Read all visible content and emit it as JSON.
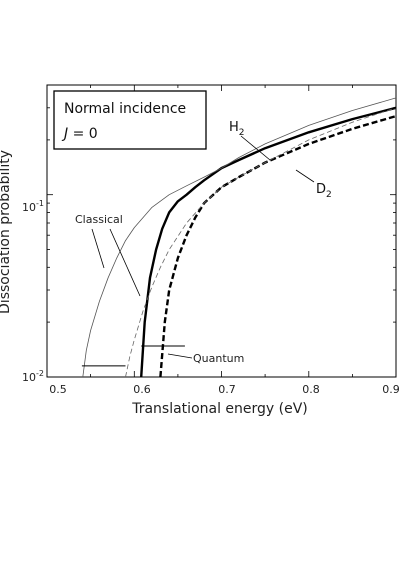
{
  "chart_data": {
    "type": "line",
    "title": "",
    "xlabel": "Translational energy (eV)",
    "ylabel": "Dissociation probability",
    "xlim": [
      0.5,
      0.9
    ],
    "ylim": [
      0.01,
      0.4
    ],
    "yscale": "log",
    "xticks": [
      "0.5",
      "0.6",
      "0.7",
      "0.8",
      "0.9"
    ],
    "yticks": [
      {
        "value": 0.01,
        "base": "10",
        "exp": "-2"
      },
      {
        "value": 0.1,
        "base": "10",
        "exp": "-1"
      }
    ],
    "grid": false,
    "legend": {
      "line1": "Normal incidence",
      "line2_var": "J",
      "line2_rest": " = 0"
    },
    "series": [
      {
        "name": "H2",
        "label_main": "H",
        "label_sub": "2",
        "method": "Quantum",
        "style": "solid-thick",
        "color": "#000000",
        "x": [
          0.608,
          0.612,
          0.618,
          0.625,
          0.632,
          0.64,
          0.65,
          0.66,
          0.67,
          0.68,
          0.7,
          0.72,
          0.75,
          0.8,
          0.85,
          0.9
        ],
        "y": [
          0.01,
          0.02,
          0.035,
          0.05,
          0.065,
          0.08,
          0.092,
          0.1,
          0.11,
          0.12,
          0.14,
          0.155,
          0.18,
          0.22,
          0.26,
          0.3
        ]
      },
      {
        "name": "D2",
        "label_main": "D",
        "label_sub": "2",
        "method": "Quantum",
        "style": "dashed-thick",
        "color": "#000000",
        "x": [
          0.63,
          0.635,
          0.64,
          0.65,
          0.66,
          0.67,
          0.68,
          0.7,
          0.72,
          0.75,
          0.8,
          0.85,
          0.9
        ],
        "y": [
          0.01,
          0.02,
          0.03,
          0.045,
          0.06,
          0.075,
          0.09,
          0.11,
          0.125,
          0.15,
          0.19,
          0.23,
          0.27
        ]
      },
      {
        "name": "H2 classical",
        "method": "Classical",
        "style": "solid-thin",
        "color": "#555555",
        "x": [
          0.541,
          0.545,
          0.55,
          0.56,
          0.57,
          0.58,
          0.59,
          0.6,
          0.62,
          0.64,
          0.66,
          0.68,
          0.7,
          0.72,
          0.75,
          0.8,
          0.85,
          0.9
        ],
        "y": [
          0.01,
          0.014,
          0.018,
          0.026,
          0.035,
          0.045,
          0.056,
          0.066,
          0.085,
          0.1,
          0.112,
          0.125,
          0.14,
          0.16,
          0.19,
          0.24,
          0.29,
          0.34
        ]
      },
      {
        "name": "D2 classical",
        "method": "Classical",
        "style": "dashed-thin",
        "color": "#666666",
        "x": [
          0.59,
          0.595,
          0.6,
          0.61,
          0.62,
          0.63,
          0.64,
          0.66,
          0.68,
          0.7,
          0.72,
          0.75,
          0.8,
          0.85,
          0.9
        ],
        "y": [
          0.01,
          0.013,
          0.016,
          0.023,
          0.031,
          0.04,
          0.05,
          0.07,
          0.09,
          0.11,
          0.125,
          0.15,
          0.2,
          0.25,
          0.3
        ]
      }
    ],
    "thresholds": [
      {
        "x1": 0.54,
        "x2": 0.59,
        "y": 0.0115
      },
      {
        "x1": 0.608,
        "x2": 0.658,
        "y": 0.0148
      }
    ],
    "annotations": {
      "classical": "Classical",
      "quantum": "Quantum"
    }
  }
}
